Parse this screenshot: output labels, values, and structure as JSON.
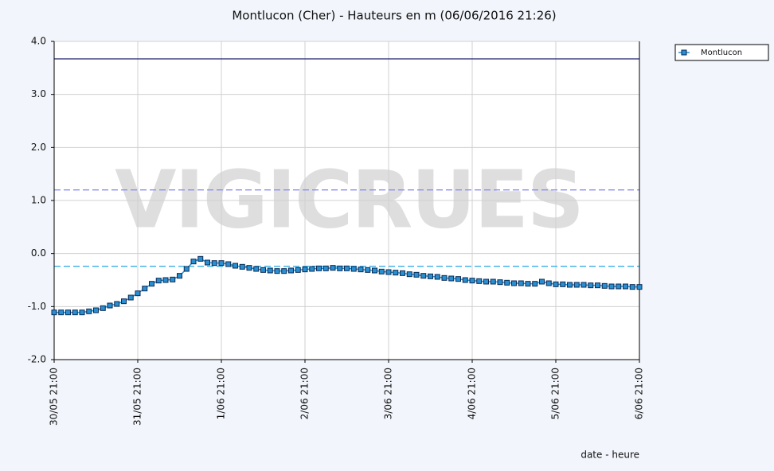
{
  "chart_data": {
    "type": "line",
    "title": "Montlucon (Cher) - Hauteurs en m (06/06/2016 21:26)",
    "watermark": "VIGICRUES",
    "x_label": "date - heure",
    "year": 2016,
    "x": [
      "30/05 21:00",
      "30/05 23:00",
      "31/05 01:00",
      "31/05 03:00",
      "31/05 05:00",
      "31/05 07:00",
      "31/05 09:00",
      "31/05 11:00",
      "31/05 13:00",
      "31/05 15:00",
      "31/05 17:00",
      "31/05 19:00",
      "31/05 21:00",
      "31/05 23:00",
      "1/06 01:00",
      "1/06 03:00",
      "1/06 05:00",
      "1/06 07:00",
      "1/06 09:00",
      "1/06 11:00",
      "1/06 13:00",
      "1/06 15:00",
      "1/06 17:00",
      "1/06 19:00",
      "1/06 21:00",
      "1/06 23:00",
      "2/06 01:00",
      "2/06 03:00",
      "2/06 05:00",
      "2/06 07:00",
      "2/06 09:00",
      "2/06 11:00",
      "2/06 13:00",
      "2/06 15:00",
      "2/06 17:00",
      "2/06 19:00",
      "2/06 21:00",
      "2/06 23:00",
      "3/06 01:00",
      "3/06 03:00",
      "3/06 05:00",
      "3/06 07:00",
      "3/06 09:00",
      "3/06 11:00",
      "3/06 13:00",
      "3/06 15:00",
      "3/06 17:00",
      "3/06 19:00",
      "3/06 21:00",
      "3/06 23:00",
      "4/06 01:00",
      "4/06 03:00",
      "4/06 05:00",
      "4/06 07:00",
      "4/06 09:00",
      "4/06 11:00",
      "4/06 13:00",
      "4/06 15:00",
      "4/06 17:00",
      "4/06 19:00",
      "4/06 21:00",
      "4/06 23:00",
      "5/06 01:00",
      "5/06 03:00",
      "5/06 05:00",
      "5/06 07:00",
      "5/06 09:00",
      "5/06 11:00",
      "5/06 13:00",
      "5/06 15:00",
      "5/06 17:00",
      "5/06 19:00",
      "5/06 21:00",
      "5/06 23:00",
      "6/06 01:00",
      "6/06 03:00",
      "6/06 05:00",
      "6/06 07:00",
      "6/06 09:00",
      "6/06 11:00",
      "6/06 13:00",
      "6/06 15:00",
      "6/06 17:00",
      "6/06 19:00",
      "6/06 21:00"
    ],
    "series": [
      {
        "name": "Montlucon",
        "color": "#2a8fd0",
        "values": [
          -1.11,
          -1.11,
          -1.11,
          -1.11,
          -1.11,
          -1.09,
          -1.07,
          -1.03,
          -0.98,
          -0.95,
          -0.9,
          -0.83,
          -0.75,
          -0.66,
          -0.57,
          -0.51,
          -0.5,
          -0.49,
          -0.42,
          -0.29,
          -0.15,
          -0.1,
          -0.17,
          -0.18,
          -0.18,
          -0.2,
          -0.23,
          -0.25,
          -0.27,
          -0.29,
          -0.31,
          -0.32,
          -0.33,
          -0.33,
          -0.32,
          -0.31,
          -0.3,
          -0.29,
          -0.28,
          -0.28,
          -0.27,
          -0.28,
          -0.28,
          -0.29,
          -0.3,
          -0.31,
          -0.32,
          -0.34,
          -0.35,
          -0.36,
          -0.37,
          -0.39,
          -0.4,
          -0.42,
          -0.43,
          -0.44,
          -0.46,
          -0.47,
          -0.48,
          -0.5,
          -0.51,
          -0.52,
          -0.53,
          -0.53,
          -0.54,
          -0.55,
          -0.56,
          -0.56,
          -0.57,
          -0.57,
          -0.53,
          -0.56,
          -0.58,
          -0.58,
          -0.59,
          -0.59,
          -0.59,
          -0.6,
          -0.6,
          -0.61,
          -0.62,
          -0.62,
          -0.62,
          -0.63,
          -0.63
        ]
      }
    ],
    "reference_lines": [
      {
        "value": 3.67,
        "color": "#22226e",
        "style": "solid"
      },
      {
        "value": 1.2,
        "color": "#8a8ff0",
        "style": "dashed"
      },
      {
        "value": -0.24,
        "color": "#3aaee8",
        "style": "dashed"
      }
    ],
    "xlim": [
      "30/05 21:00",
      "6/06 21:00"
    ],
    "xticks": [
      "30/05 21:00",
      "31/05 21:00",
      "1/06 21:00",
      "2/06 21:00",
      "3/06 21:00",
      "4/06 21:00",
      "5/06 21:00",
      "6/06 21:00"
    ],
    "ylim": [
      -2,
      4
    ],
    "yticks": [
      {
        "value": -2,
        "label": "-2.0"
      },
      {
        "value": -1,
        "label": "-1.0"
      },
      {
        "value": 0,
        "label": "0.0"
      },
      {
        "value": 1,
        "label": "1.0"
      },
      {
        "value": 2,
        "label": "2.0"
      },
      {
        "value": 3,
        "label": "3.0"
      },
      {
        "value": 4,
        "label": "4.0"
      }
    ],
    "grid": true,
    "legend": "top-right"
  }
}
